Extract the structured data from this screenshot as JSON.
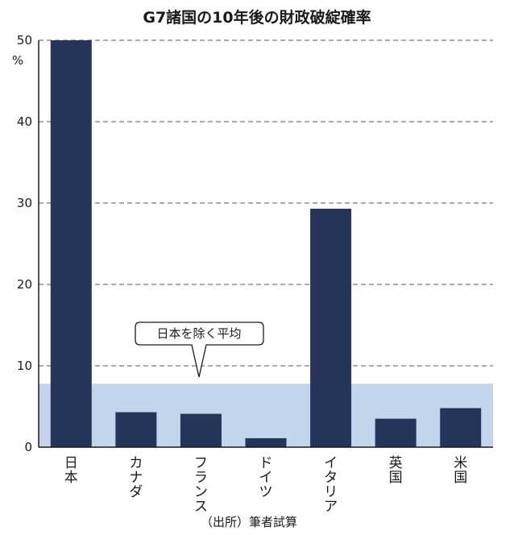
{
  "chart_data": {
    "type": "bar",
    "title": "G7諸国の10年後の財政破綻確率",
    "ylabel": "%",
    "xlabel": "",
    "ylim": [
      0,
      50
    ],
    "yticks": [
      0,
      10,
      20,
      30,
      40,
      50
    ],
    "grid": true,
    "categories": [
      "日本",
      "カナダ",
      "フランス",
      "ドイツ",
      "イタリア",
      "英国",
      "米国"
    ],
    "values": [
      50,
      4.3,
      4.1,
      1.1,
      29.3,
      3.5,
      4.8
    ],
    "bar_color": "#27345a",
    "band": {
      "label": "日本を除く平均",
      "value": 7.8,
      "color": "#c4d4ec"
    },
    "source": "（出所）筆者試算"
  }
}
